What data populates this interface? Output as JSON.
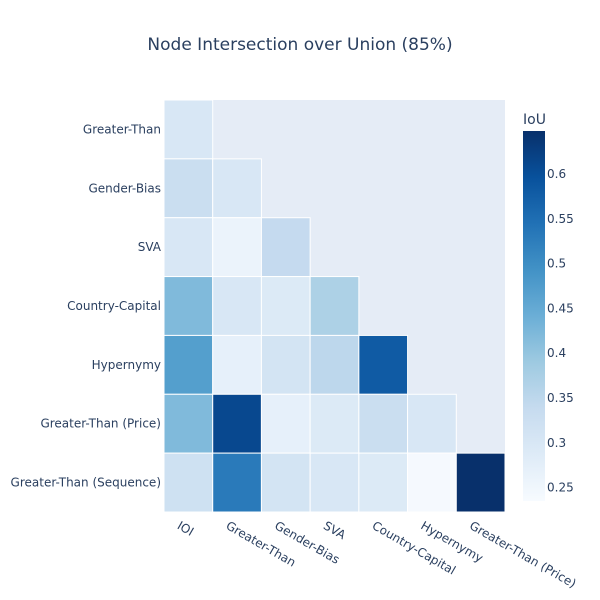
{
  "chart_data": {
    "type": "heatmap",
    "title": "Node Intersection over Union (85%)",
    "x_categories": [
      "IOI",
      "Greater-Than",
      "Gender-Bias",
      "SVA",
      "Country-Capital",
      "Hypernymy",
      "Greater-Than (Price)"
    ],
    "y_categories": [
      "Greater-Than",
      "Gender-Bias",
      "SVA",
      "Country-Capital",
      "Hypernymy",
      "Greater-Than (Price)",
      "Greater-Than (Sequence)"
    ],
    "values": [
      [
        0.3,
        null,
        null,
        null,
        null,
        null,
        null
      ],
      [
        0.33,
        0.3,
        null,
        null,
        null,
        null,
        null
      ],
      [
        0.3,
        0.26,
        0.34,
        null,
        null,
        null,
        null
      ],
      [
        0.42,
        0.3,
        0.29,
        0.37,
        null,
        null,
        null
      ],
      [
        0.47,
        0.27,
        0.31,
        0.35,
        0.58,
        null,
        null
      ],
      [
        0.42,
        0.61,
        0.27,
        0.29,
        0.33,
        0.3,
        null
      ],
      [
        0.32,
        0.53,
        0.31,
        0.3,
        0.29,
        0.24,
        0.65
      ]
    ],
    "zmin": 0.235,
    "zmax": 0.648,
    "empty_cell_color": "#e5ecf6",
    "colorscale": [
      "#f7fbff",
      "#deebf7",
      "#c6dbef",
      "#9ecae1",
      "#6baed6",
      "#4292c6",
      "#2171b5",
      "#08519c",
      "#08306b"
    ],
    "colorbar": {
      "title": "IoU",
      "ticks": [
        0.25,
        0.3,
        0.35,
        0.4,
        0.45,
        0.5,
        0.55,
        0.6
      ],
      "tick_labels": [
        "0.25",
        "0.3",
        "0.35",
        "0.4",
        "0.45",
        "0.5",
        "0.55",
        "0.6"
      ]
    }
  }
}
